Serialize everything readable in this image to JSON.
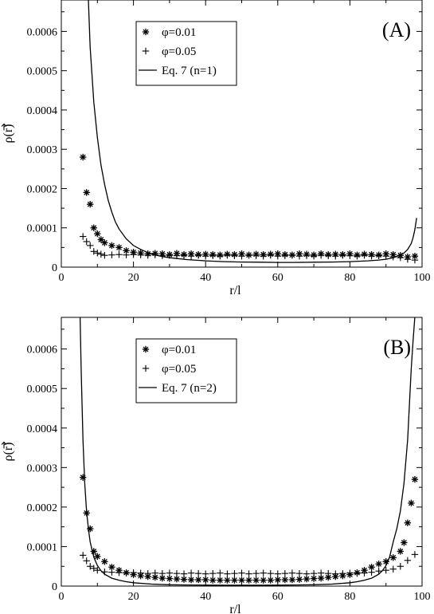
{
  "chart_data": [
    {
      "type": "scatter",
      "panel_label": "(A)",
      "xlabel": "r/l",
      "ylabel": "ρ(r)",
      "xlim": [
        0,
        100
      ],
      "ylim": [
        0,
        0.00068
      ],
      "xticks": [
        "0",
        "20",
        "40",
        "60",
        "80",
        "100"
      ],
      "yticks": [
        "0",
        "0.0001",
        "0.0002",
        "0.0003",
        "0.0004",
        "0.0005",
        "0.0006"
      ],
      "legend_position": "top-left",
      "series": [
        {
          "name": "φ=0.01",
          "marker": "asterisk",
          "x": [
            6,
            7,
            8,
            9,
            10,
            11,
            12,
            14,
            16,
            18,
            20,
            22,
            24,
            26,
            28,
            30,
            32,
            34,
            36,
            38,
            40,
            42,
            44,
            46,
            48,
            50,
            52,
            54,
            56,
            58,
            60,
            62,
            64,
            66,
            68,
            70,
            72,
            74,
            76,
            78,
            80,
            82,
            84,
            86,
            88,
            90,
            92,
            94,
            96,
            98
          ],
          "y": [
            0.00028,
            0.00019,
            0.00016,
            0.0001,
            8.5e-05,
            7e-05,
            6.2e-05,
            5.5e-05,
            5e-05,
            4.2e-05,
            3.8e-05,
            3.6e-05,
            3.4e-05,
            3.5e-05,
            3.4e-05,
            3.2e-05,
            3.5e-05,
            3.2e-05,
            3.4e-05,
            3.2e-05,
            3.3e-05,
            3.2e-05,
            3.1e-05,
            3.3e-05,
            3.2e-05,
            3.4e-05,
            3.1e-05,
            3.3e-05,
            3.2e-05,
            3.3e-05,
            3.4e-05,
            3.2e-05,
            3.1e-05,
            3.4e-05,
            3.3e-05,
            3.1e-05,
            3.4e-05,
            3.2e-05,
            3.3e-05,
            3.2e-05,
            3.4e-05,
            3.1e-05,
            3.3e-05,
            3.2e-05,
            3.1e-05,
            3.4e-05,
            3.2e-05,
            3e-05,
            2.6e-05,
            2.8e-05
          ]
        },
        {
          "name": "φ=0.05",
          "marker": "plus",
          "x": [
            6,
            7,
            8,
            9,
            10,
            11,
            12,
            14,
            16,
            18,
            20,
            22,
            24,
            26,
            28,
            30,
            32,
            34,
            36,
            38,
            40,
            42,
            44,
            46,
            48,
            50,
            52,
            54,
            56,
            58,
            60,
            62,
            64,
            66,
            68,
            70,
            72,
            74,
            76,
            78,
            80,
            82,
            84,
            86,
            88,
            90,
            92,
            94,
            96,
            98
          ],
          "y": [
            7.8e-05,
            6.5e-05,
            5.5e-05,
            4e-05,
            3.6e-05,
            3.3e-05,
            3e-05,
            3.1e-05,
            3.2e-05,
            3.1e-05,
            3.2e-05,
            3.1e-05,
            3e-05,
            3.1e-05,
            2.9e-05,
            3e-05,
            2.9e-05,
            3e-05,
            2.8e-05,
            3e-05,
            2.8e-05,
            2.9e-05,
            2.8e-05,
            3e-05,
            2.9e-05,
            2.8e-05,
            3e-05,
            2.9e-05,
            2.8e-05,
            3e-05,
            2.8e-05,
            2.9e-05,
            3e-05,
            2.8e-05,
            2.9e-05,
            2.8e-05,
            3e-05,
            2.9e-05,
            2.8e-05,
            3e-05,
            2.9e-05,
            2.8e-05,
            3e-05,
            2.8e-05,
            2.9e-05,
            2.8e-05,
            2.6e-05,
            2.4e-05,
            2e-05,
            1.8e-05
          ]
        },
        {
          "name": "Eq. 7 (n=1)",
          "marker": "line",
          "x": [
            7.5,
            8,
            9,
            10,
            11,
            12,
            13,
            14,
            15,
            16,
            18,
            20,
            22,
            24,
            26,
            28,
            30,
            35,
            40,
            45,
            50,
            55,
            60,
            65,
            70,
            75,
            80,
            85,
            88,
            90,
            92,
            94,
            95,
            96,
            97,
            97.5,
            98,
            98.5
          ],
          "y": [
            0.00068,
            0.00056,
            0.00042,
            0.00033,
            0.00026,
            0.00021,
            0.00017,
            0.00014,
            0.000115,
            9.7e-05,
            7.2e-05,
            5.5e-05,
            4.5e-05,
            3.7e-05,
            3.1e-05,
            2.7e-05,
            2.4e-05,
            1.9e-05,
            1.6e-05,
            1.4e-05,
            1.3e-05,
            1.25e-05,
            1.2e-05,
            1.2e-05,
            1.25e-05,
            1.3e-05,
            1.4e-05,
            1.6e-05,
            1.8e-05,
            2e-05,
            2.4e-05,
            3.1e-05,
            3.6e-05,
            4.5e-05,
            6e-05,
            7.5e-05,
            9.5e-05,
            0.000125
          ]
        }
      ]
    },
    {
      "type": "scatter",
      "panel_label": "(B)",
      "xlabel": "r/l",
      "ylabel": "ρ(r)",
      "xlim": [
        0,
        100
      ],
      "ylim": [
        0,
        0.00068
      ],
      "xticks": [
        "0",
        "20",
        "40",
        "60",
        "80",
        "100"
      ],
      "yticks": [
        "0",
        "0.0001",
        "0.0002",
        "0.0003",
        "0.0004",
        "0.0005",
        "0.0006"
      ],
      "legend_position": "top-left",
      "series": [
        {
          "name": "φ=0.01",
          "marker": "asterisk",
          "x": [
            6,
            7,
            8,
            9,
            10,
            12,
            14,
            16,
            18,
            20,
            22,
            24,
            26,
            28,
            30,
            32,
            34,
            36,
            38,
            40,
            42,
            44,
            46,
            48,
            50,
            52,
            54,
            56,
            58,
            60,
            62,
            64,
            66,
            68,
            70,
            72,
            74,
            76,
            78,
            80,
            82,
            84,
            86,
            88,
            90,
            92,
            94,
            95,
            96,
            97,
            98
          ],
          "y": [
            0.000275,
            0.000185,
            0.000145,
            8.8e-05,
            7.5e-05,
            6.2e-05,
            4.8e-05,
            4e-05,
            3.4e-05,
            2.9e-05,
            2.6e-05,
            2.4e-05,
            2.2e-05,
            2e-05,
            1.9e-05,
            1.8e-05,
            1.7e-05,
            1.6e-05,
            1.6e-05,
            1.6e-05,
            1.5e-05,
            1.5e-05,
            1.5e-05,
            1.5e-05,
            1.5e-05,
            1.5e-05,
            1.5e-05,
            1.5e-05,
            1.5e-05,
            1.6e-05,
            1.6e-05,
            1.6e-05,
            1.7e-05,
            1.8e-05,
            1.9e-05,
            2e-05,
            2.2e-05,
            2.4e-05,
            2.6e-05,
            2.9e-05,
            3.4e-05,
            4e-05,
            4.8e-05,
            5.6e-05,
            6.2e-05,
            7.2e-05,
            8.8e-05,
            0.00011,
            0.00016,
            0.00021,
            0.00027
          ]
        },
        {
          "name": "φ=0.05",
          "marker": "plus",
          "x": [
            6,
            7,
            8,
            9,
            10,
            12,
            14,
            16,
            18,
            20,
            22,
            24,
            26,
            28,
            30,
            32,
            34,
            36,
            38,
            40,
            42,
            44,
            46,
            48,
            50,
            52,
            54,
            56,
            58,
            60,
            62,
            64,
            66,
            68,
            70,
            72,
            74,
            76,
            78,
            80,
            82,
            84,
            86,
            88,
            90,
            92,
            94,
            96,
            98
          ],
          "y": [
            7.8e-05,
            6.4e-05,
            5e-05,
            4.5e-05,
            4e-05,
            3.6e-05,
            3.5e-05,
            3.4e-05,
            3.3e-05,
            3.4e-05,
            3.3e-05,
            3.2e-05,
            3.3e-05,
            3.2e-05,
            3.3e-05,
            3.2e-05,
            3.1e-05,
            3.3e-05,
            3.2e-05,
            3.1e-05,
            3.2e-05,
            3.3e-05,
            3.1e-05,
            3.2e-05,
            3.3e-05,
            3.1e-05,
            3.2e-05,
            3.3e-05,
            3.2e-05,
            3.1e-05,
            3.2e-05,
            3.3e-05,
            3.2e-05,
            3.1e-05,
            3.2e-05,
            3.3e-05,
            3.2e-05,
            3.1e-05,
            3.2e-05,
            3.3e-05,
            3.2e-05,
            3.3e-05,
            3.5e-05,
            3.8e-05,
            4e-05,
            4.3e-05,
            5e-05,
            6.5e-05,
            8e-05
          ]
        },
        {
          "name": "Eq. 7 (n=2)",
          "marker": "line",
          "x": [
            5.2,
            5.5,
            6,
            6.5,
            7,
            7.5,
            8,
            9,
            10,
            11,
            12,
            14,
            16,
            18,
            20,
            25,
            30,
            35,
            40,
            45,
            50,
            55,
            60,
            65,
            70,
            75,
            80,
            82,
            84,
            86,
            88,
            89,
            90,
            91,
            92,
            93,
            94,
            95,
            96,
            97,
            97.5,
            98
          ],
          "y": [
            0.00068,
            0.00055,
            0.00037,
            0.00026,
            0.00019,
            0.000145,
            0.000112,
            7.3e-05,
            5.2e-05,
            3.9e-05,
            3e-05,
            2e-05,
            1.5e-05,
            1.1e-05,
            8.5e-06,
            5e-06,
            3.5e-06,
            2.8e-06,
            2.5e-06,
            2.3e-06,
            2.2e-06,
            2.3e-06,
            2.5e-06,
            2.8e-06,
            3.5e-06,
            5e-06,
            8.5e-06,
            1.1e-05,
            1.5e-05,
            2e-05,
            3e-05,
            3.9e-05,
            5.2e-05,
            7.3e-05,
            0.000112,
            0.000145,
            0.00019,
            0.00026,
            0.00037,
            0.00055,
            0.00062,
            0.00068
          ]
        }
      ]
    }
  ]
}
